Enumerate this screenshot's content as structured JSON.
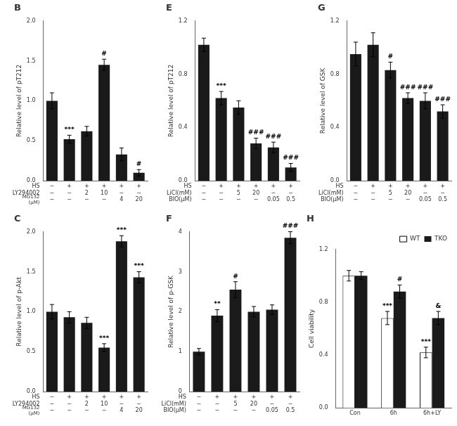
{
  "chart_data": [
    {
      "type": "bar",
      "title": "B",
      "categories": [
        "−\n−\n−",
        "+\n−\n−",
        "+\n2\n−",
        "+\n10\n−",
        "+\n−\n4",
        "+\n−\n20"
      ],
      "category_rows": [
        "HS",
        "LY294002",
        "MG132\n(μM)"
      ],
      "values": [
        1.0,
        0.52,
        0.62,
        1.45,
        0.33,
        0.1
      ],
      "errors": [
        0.1,
        0.05,
        0.06,
        0.07,
        0.08,
        0.04
      ],
      "significance": [
        null,
        "***",
        null,
        "#",
        null,
        "#"
      ],
      "color": "#1a1a1a",
      "ylabel": "Relative level of pT212",
      "ylim": [
        0.0,
        2.0
      ],
      "yticks": [
        {
          "value": 0.0,
          "label": "0.0"
        },
        0.5,
        {
          "value": 1.0,
          "label": "1.0"
        },
        1.5,
        {
          "value": 2.0,
          "label": "2.0"
        }
      ],
      "grid": false
    },
    {
      "type": "bar",
      "title": "C",
      "categories": [
        "−\n−\n−",
        "+\n−\n−",
        "+\n2\n−",
        "+\n10\n−",
        "+\n−\n4",
        "+\n−\n20"
      ],
      "category_rows": [
        "HS",
        "LY294002",
        "MG132\n(μM)"
      ],
      "values": [
        1.0,
        0.93,
        0.86,
        0.55,
        1.88,
        1.43
      ],
      "errors": [
        0.09,
        0.07,
        0.07,
        0.05,
        0.07,
        0.07
      ],
      "significance": [
        null,
        null,
        null,
        "***",
        "***",
        "***"
      ],
      "color": "#1a1a1a",
      "ylabel": "Relative level of p-Akt",
      "ylim": [
        0.0,
        2.0
      ],
      "yticks": [
        {
          "value": 0.0,
          "label": "0.0"
        },
        0.5,
        {
          "value": 1.0,
          "label": "1.0"
        },
        1.5,
        {
          "value": 2.0,
          "label": "2.0"
        }
      ],
      "grid": false
    },
    {
      "type": "bar",
      "title": "E",
      "categories": [
        "−\n−\n−",
        "+\n−\n−",
        "+\n5\n−",
        "+\n20\n−",
        "+\n−\n0.05",
        "+\n−\n0.5"
      ],
      "category_rows": [
        "HS",
        "LiCl(mM)",
        "BIO(μM)"
      ],
      "values": [
        1.02,
        0.62,
        0.55,
        0.28,
        0.25,
        0.1
      ],
      "errors": [
        0.05,
        0.05,
        0.05,
        0.04,
        0.04,
        0.03
      ],
      "significance": [
        null,
        "***",
        null,
        "###",
        "###",
        "###"
      ],
      "color": "#1a1a1a",
      "ylabel": "Relative level of pT212",
      "ylim": [
        0.0,
        1.2
      ],
      "yticks": [
        {
          "value": 0.0,
          "label": "0.0"
        },
        0.4,
        0.8,
        1.2
      ],
      "grid": false
    },
    {
      "type": "bar",
      "title": "F",
      "categories": [
        "−\n−\n−",
        "+\n−\n−",
        "+\n5\n−",
        "+\n20\n−",
        "+\n−\n0.05",
        "+\n−\n0.5"
      ],
      "category_rows": [
        "HS",
        "LiCl(mM)",
        "BIO(μM)"
      ],
      "values": [
        1.0,
        1.9,
        2.55,
        2.0,
        2.05,
        3.85
      ],
      "errors": [
        0.08,
        0.15,
        0.2,
        0.13,
        0.12,
        0.15
      ],
      "significance": [
        null,
        "**",
        "#",
        null,
        null,
        "###"
      ],
      "color": "#1a1a1a",
      "ylabel": "Relative level of p-GSK",
      "ylim": [
        0.0,
        4.0
      ],
      "yticks": [
        0,
        1,
        2,
        3,
        4
      ],
      "grid": false
    },
    {
      "type": "bar",
      "title": "G",
      "categories": [
        "−\n−\n−",
        "+\n−\n−",
        "+\n5\n−",
        "+\n20\n−",
        "+\n−\n0.05",
        "+\n−\n0.5"
      ],
      "category_rows": [
        "HS",
        "LiCl(mM)",
        "BIO(μM)"
      ],
      "values": [
        0.95,
        1.02,
        0.83,
        0.62,
        0.6,
        0.52
      ],
      "errors": [
        0.09,
        0.09,
        0.06,
        0.04,
        0.06,
        0.05
      ],
      "significance": [
        null,
        null,
        "#",
        "###",
        "###",
        "###"
      ],
      "color": "#1a1a1a",
      "ylabel": "Relative level of GSK",
      "ylim": [
        0.0,
        1.2
      ],
      "yticks": [
        {
          "value": 0.0,
          "label": "0.0"
        },
        0.4,
        0.8,
        1.2
      ],
      "grid": false
    },
    {
      "type": "bar",
      "title": "H",
      "categories": [
        "Con",
        "6h",
        "6h+LY"
      ],
      "series": [
        {
          "name": "WT",
          "color": "white",
          "values": [
            1.0,
            0.68,
            0.42
          ],
          "errors": [
            0.04,
            0.05,
            0.04
          ],
          "significance": [
            null,
            "***",
            "***"
          ]
        },
        {
          "name": "TKO",
          "color": "#1a1a1a",
          "values": [
            1.0,
            0.88,
            0.68
          ],
          "errors": [
            0.03,
            0.05,
            0.05
          ],
          "significance": [
            null,
            "#",
            "&"
          ]
        }
      ],
      "ylabel": "Cell viability",
      "ylim": [
        0.0,
        1.2
      ],
      "yticks": [
        {
          "value": 0.0,
          "label": "0.0"
        },
        0.4,
        0.8,
        1.2
      ],
      "legend": "upper right",
      "grid": false
    }
  ]
}
